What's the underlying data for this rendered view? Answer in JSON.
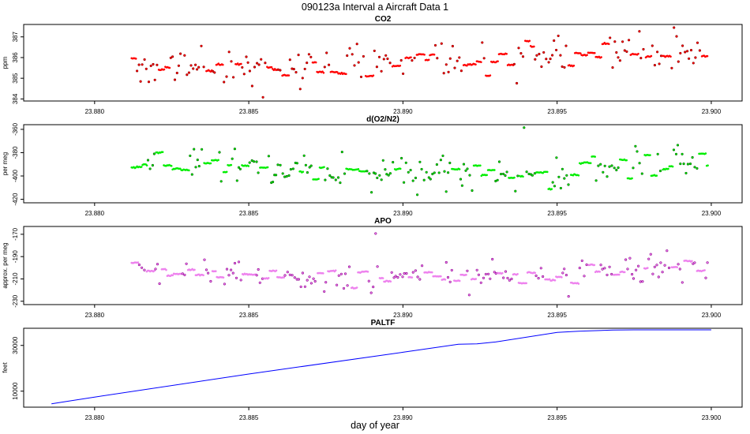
{
  "title": "090123a   Interval a Aircraft Data 1",
  "colors": {
    "co2_fill": "#ff0000",
    "co2_edge": "#8b0000",
    "o2_fill": "#00ee00",
    "o2_edge": "#006400",
    "apo_fill": "#ee82ee",
    "apo_edge": "#8b008b",
    "paltf_line": "#0000ff"
  },
  "chart_data": [
    {
      "type": "scatter",
      "title": "CO2",
      "xlabel": "",
      "ylabel": "ppm",
      "xlim": [
        23.8777,
        23.901
      ],
      "ylim": [
        383.9,
        387.6
      ],
      "xticks": [
        23.88,
        23.885,
        23.89,
        23.895,
        23.9
      ],
      "xtick_labels": [
        "23.880",
        "23.885",
        "23.890",
        "23.895",
        "23.900"
      ],
      "yticks": [
        384,
        385,
        386,
        387
      ],
      "ytick_labels": [
        "384",
        "385",
        "386",
        "387"
      ],
      "x_range": [
        23.8812,
        23.8999
      ],
      "baseline_segments": [
        {
          "x": [
            23.8812,
            23.885
          ],
          "y": [
            385.6,
            385.7
          ]
        },
        {
          "x": [
            23.885,
            23.888
          ],
          "y": [
            385.6,
            385.5
          ]
        },
        {
          "x": [
            23.888,
            23.893
          ],
          "y": [
            385.9,
            385.8
          ]
        },
        {
          "x": [
            23.893,
            23.8999
          ],
          "y": [
            386.1,
            386.3
          ]
        }
      ],
      "noise": 0.42,
      "dash_noise": 0.28,
      "outlier_noise": 1.0
    },
    {
      "type": "scatter",
      "title": "d(O2/N2)",
      "xlabel": "",
      "ylabel": "per meg",
      "xlim": [
        23.8777,
        23.901
      ],
      "ylim": [
        -423,
        -356
      ],
      "xticks": [
        23.88,
        23.885,
        23.89,
        23.895,
        23.9
      ],
      "xtick_labels": [
        "23.880",
        "23.885",
        "23.890",
        "23.895",
        "23.900"
      ],
      "yticks": [
        -420,
        -400,
        -380,
        -360
      ],
      "ytick_labels": [
        "-420",
        "-400",
        "-380",
        "-360"
      ],
      "x_range": [
        23.8812,
        23.8999
      ],
      "baseline_segments": [
        {
          "x": [
            23.8812,
            23.884
          ],
          "y": [
            -388,
            -390
          ]
        },
        {
          "x": [
            23.884,
            23.887
          ],
          "y": [
            -392,
            -395
          ]
        },
        {
          "x": [
            23.887,
            23.8955
          ],
          "y": [
            -396,
            -399
          ]
        },
        {
          "x": [
            23.8955,
            23.8999
          ],
          "y": [
            -390,
            -387
          ]
        }
      ],
      "noise": 6.5,
      "dash_noise": 4.5,
      "outlier_noise": 14
    },
    {
      "type": "scatter",
      "title": "APO",
      "xlabel": "",
      "ylabel": "approx. per meg",
      "xlim": [
        23.8777,
        23.901
      ],
      "ylim": [
        -233,
        -163
      ],
      "xticks": [
        23.88,
        23.885,
        23.89,
        23.895,
        23.9
      ],
      "xtick_labels": [
        "23.880",
        "23.885",
        "23.890",
        "23.895",
        "23.900"
      ],
      "yticks": [
        -230,
        -210,
        -190,
        -170
      ],
      "ytick_labels": [
        "-230",
        "-210",
        "-190",
        "-170"
      ],
      "x_range": [
        23.8812,
        23.8999
      ],
      "baseline_segments": [
        {
          "x": [
            23.8812,
            23.885
          ],
          "y": [
            -203,
            -206
          ]
        },
        {
          "x": [
            23.885,
            23.8955
          ],
          "y": [
            -209,
            -208
          ]
        },
        {
          "x": [
            23.8955,
            23.8999
          ],
          "y": [
            -202,
            -201
          ]
        }
      ],
      "noise": 6.0,
      "dash_noise": 4.0,
      "outlier_noise": 13
    },
    {
      "type": "line",
      "title": "PALTF",
      "xlabel": "day of year",
      "ylabel": "feet",
      "xlim": [
        23.8777,
        23.901
      ],
      "ylim": [
        3000,
        37500
      ],
      "xticks": [
        23.88,
        23.885,
        23.89,
        23.895,
        23.9
      ],
      "xtick_labels": [
        "23.880",
        "23.885",
        "23.890",
        "23.895",
        "23.900"
      ],
      "yticks": [
        10000,
        30000
      ],
      "ytick_labels": [
        "10000",
        "30000"
      ],
      "x": [
        23.8786,
        23.88,
        23.885,
        23.89,
        23.8918,
        23.8924,
        23.893,
        23.895,
        23.8957,
        23.8968,
        23.8975,
        23.8985,
        23.9
      ],
      "y": [
        4500,
        7400,
        17500,
        27000,
        30500,
        30700,
        31500,
        35700,
        36200,
        36700,
        36800,
        36800,
        36800
      ]
    }
  ]
}
